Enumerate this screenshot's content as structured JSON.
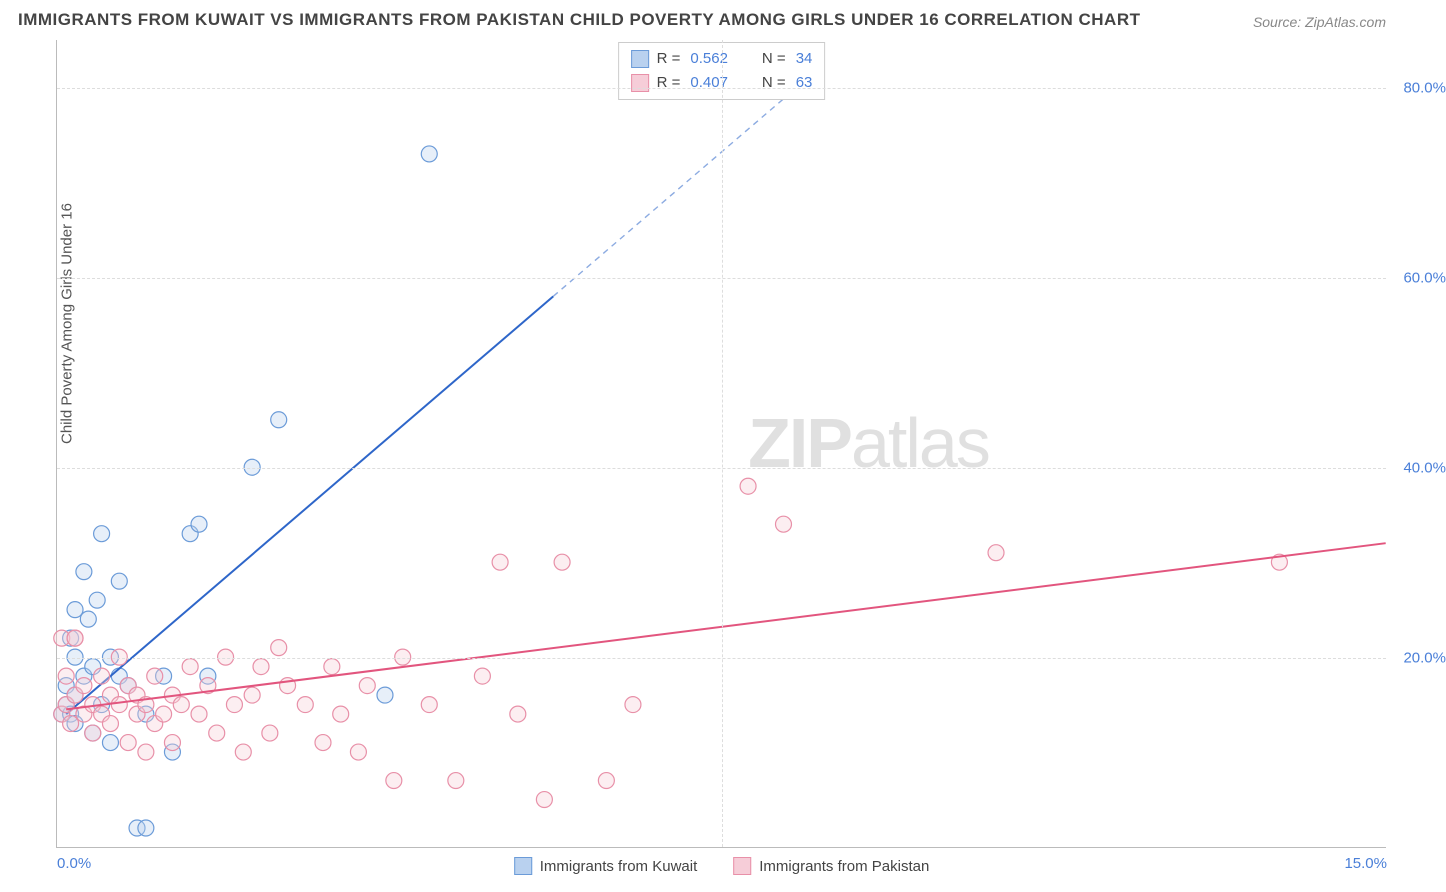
{
  "title": "IMMIGRANTS FROM KUWAIT VS IMMIGRANTS FROM PAKISTAN CHILD POVERTY AMONG GIRLS UNDER 16 CORRELATION CHART",
  "source": "Source: ZipAtlas.com",
  "ylabel": "Child Poverty Among Girls Under 16",
  "watermark_zip": "ZIP",
  "watermark_atlas": "atlas",
  "chart": {
    "type": "scatter",
    "background_color": "#ffffff",
    "grid_color": "#dddddd",
    "axis_color": "#bbbbbb",
    "tick_fontsize": 15,
    "tick_color": "#4a7fd8",
    "ylabel_fontsize": 15,
    "ylabel_color": "#555555",
    "xlim": [
      0,
      15
    ],
    "ylim": [
      0,
      85
    ],
    "yticks": [
      20,
      40,
      60,
      80
    ],
    "ytick_labels": [
      "20.0%",
      "40.0%",
      "60.0%",
      "80.0%"
    ],
    "xticks_at": [
      0,
      15
    ],
    "xtick_labels": [
      "0.0%",
      "15.0%"
    ],
    "vgrid_at": [
      7.5
    ],
    "marker_radius": 8,
    "marker_stroke_width": 1.2,
    "marker_fill_opacity": 0.35,
    "line_width": 2,
    "dash_pattern": "6 5",
    "series": [
      {
        "name": "Immigrants from Kuwait",
        "color": "#6b9bd8",
        "line_color": "#2e66c9",
        "fill": "#b9d1ef",
        "R": "0.562",
        "N": "34",
        "trend": {
          "x1": 0.1,
          "y1": 14,
          "x2": 5.6,
          "y2": 58,
          "dash_to_x": 8.6,
          "dash_to_y": 82
        },
        "points": [
          [
            0.05,
            14
          ],
          [
            0.1,
            15
          ],
          [
            0.1,
            17
          ],
          [
            0.15,
            14
          ],
          [
            0.15,
            22
          ],
          [
            0.2,
            13
          ],
          [
            0.2,
            16
          ],
          [
            0.2,
            20
          ],
          [
            0.2,
            25
          ],
          [
            0.3,
            18
          ],
          [
            0.3,
            29
          ],
          [
            0.35,
            24
          ],
          [
            0.4,
            12
          ],
          [
            0.4,
            19
          ],
          [
            0.45,
            26
          ],
          [
            0.5,
            15
          ],
          [
            0.5,
            33
          ],
          [
            0.6,
            11
          ],
          [
            0.6,
            20
          ],
          [
            0.7,
            18
          ],
          [
            0.7,
            28
          ],
          [
            0.8,
            17
          ],
          [
            0.9,
            2
          ],
          [
            1.0,
            14
          ],
          [
            1.0,
            2
          ],
          [
            1.2,
            18
          ],
          [
            1.3,
            10
          ],
          [
            1.5,
            33
          ],
          [
            1.6,
            34
          ],
          [
            1.7,
            18
          ],
          [
            2.2,
            40
          ],
          [
            2.5,
            45
          ],
          [
            3.7,
            16
          ],
          [
            4.2,
            73
          ]
        ]
      },
      {
        "name": "Immigrants from Pakistan",
        "color": "#e890a8",
        "line_color": "#e2557e",
        "fill": "#f6cdd8",
        "R": "0.407",
        "N": "63",
        "trend": {
          "x1": 0.1,
          "y1": 14.5,
          "x2": 15,
          "y2": 32
        },
        "points": [
          [
            0.05,
            14
          ],
          [
            0.05,
            22
          ],
          [
            0.1,
            15
          ],
          [
            0.1,
            18
          ],
          [
            0.15,
            13
          ],
          [
            0.2,
            16
          ],
          [
            0.2,
            22
          ],
          [
            0.3,
            14
          ],
          [
            0.3,
            17
          ],
          [
            0.4,
            12
          ],
          [
            0.4,
            15
          ],
          [
            0.5,
            14
          ],
          [
            0.5,
            18
          ],
          [
            0.6,
            13
          ],
          [
            0.6,
            16
          ],
          [
            0.7,
            15
          ],
          [
            0.7,
            20
          ],
          [
            0.8,
            11
          ],
          [
            0.8,
            17
          ],
          [
            0.9,
            14
          ],
          [
            0.9,
            16
          ],
          [
            1.0,
            10
          ],
          [
            1.0,
            15
          ],
          [
            1.1,
            13
          ],
          [
            1.1,
            18
          ],
          [
            1.2,
            14
          ],
          [
            1.3,
            11
          ],
          [
            1.3,
            16
          ],
          [
            1.4,
            15
          ],
          [
            1.5,
            19
          ],
          [
            1.6,
            14
          ],
          [
            1.7,
            17
          ],
          [
            1.8,
            12
          ],
          [
            1.9,
            20
          ],
          [
            2.0,
            15
          ],
          [
            2.1,
            10
          ],
          [
            2.2,
            16
          ],
          [
            2.3,
            19
          ],
          [
            2.4,
            12
          ],
          [
            2.5,
            21
          ],
          [
            2.6,
            17
          ],
          [
            2.8,
            15
          ],
          [
            3.0,
            11
          ],
          [
            3.1,
            19
          ],
          [
            3.2,
            14
          ],
          [
            3.4,
            10
          ],
          [
            3.5,
            17
          ],
          [
            3.8,
            7
          ],
          [
            3.9,
            20
          ],
          [
            4.2,
            15
          ],
          [
            4.5,
            7
          ],
          [
            4.8,
            18
          ],
          [
            5.0,
            30
          ],
          [
            5.2,
            14
          ],
          [
            5.5,
            5
          ],
          [
            5.7,
            30
          ],
          [
            6.2,
            7
          ],
          [
            6.5,
            15
          ],
          [
            7.8,
            38
          ],
          [
            8.2,
            34
          ],
          [
            10.6,
            31
          ],
          [
            13.8,
            30
          ],
          [
            0.2,
            22
          ]
        ]
      }
    ]
  },
  "legend_top": {
    "r_label": "R =",
    "n_label": "N ="
  },
  "legend_bottom": [
    {
      "label": "Immigrants from Kuwait",
      "fill": "#b9d1ef",
      "stroke": "#6b9bd8"
    },
    {
      "label": "Immigrants from Pakistan",
      "fill": "#f6cdd8",
      "stroke": "#e890a8"
    }
  ]
}
